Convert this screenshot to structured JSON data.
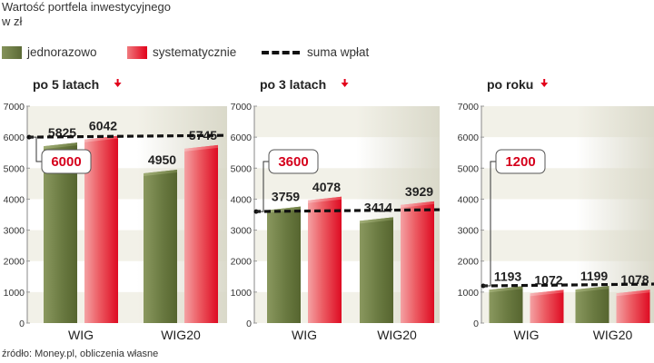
{
  "header": {
    "title_line1": "Wartość portfela inwestycyjnego",
    "title_line2": "w zł"
  },
  "legend": {
    "series1": "jednorazowo",
    "series2": "systematycznie",
    "line": "suma wpłat"
  },
  "colors": {
    "green": "#5b6a36",
    "red": "#e2001a",
    "callout": "#d5001c",
    "band": "#e7e6d6"
  },
  "source": "źródło: Money.pl, obliczenia własne",
  "chart_data": [
    {
      "type": "bar",
      "title": "po 5 latach",
      "categories": [
        "WIG",
        "WIG20"
      ],
      "series": [
        {
          "name": "jednorazowo",
          "values": [
            5825,
            4950
          ]
        },
        {
          "name": "systematycznie",
          "values": [
            6042,
            5745
          ]
        }
      ],
      "reference_line": {
        "name": "suma wpłat",
        "value": 6000,
        "label": "6000"
      },
      "ylim": [
        0,
        7000
      ],
      "yticks": [
        0,
        1000,
        2000,
        3000,
        4000,
        5000,
        6000,
        7000
      ]
    },
    {
      "type": "bar",
      "title": "po 3 latach",
      "categories": [
        "WIG",
        "WIG20"
      ],
      "series": [
        {
          "name": "jednorazowo",
          "values": [
            3759,
            3414
          ]
        },
        {
          "name": "systematycznie",
          "values": [
            4078,
            3929
          ]
        }
      ],
      "reference_line": {
        "name": "suma wpłat",
        "value": 3600,
        "label": "3600"
      },
      "ylim": [
        0,
        7000
      ],
      "yticks": [
        0,
        1000,
        2000,
        3000,
        4000,
        5000,
        6000,
        7000
      ]
    },
    {
      "type": "bar",
      "title": "po roku",
      "categories": [
        "WIG",
        "WIG20"
      ],
      "series": [
        {
          "name": "jednorazowo",
          "values": [
            1193,
            1199
          ]
        },
        {
          "name": "systematycznie",
          "values": [
            1072,
            1078
          ]
        }
      ],
      "reference_line": {
        "name": "suma wpłat",
        "value": 1200,
        "label": "1200"
      },
      "ylim": [
        0,
        7000
      ],
      "yticks": [
        0,
        1000,
        2000,
        3000,
        4000,
        5000,
        6000,
        7000
      ]
    }
  ]
}
